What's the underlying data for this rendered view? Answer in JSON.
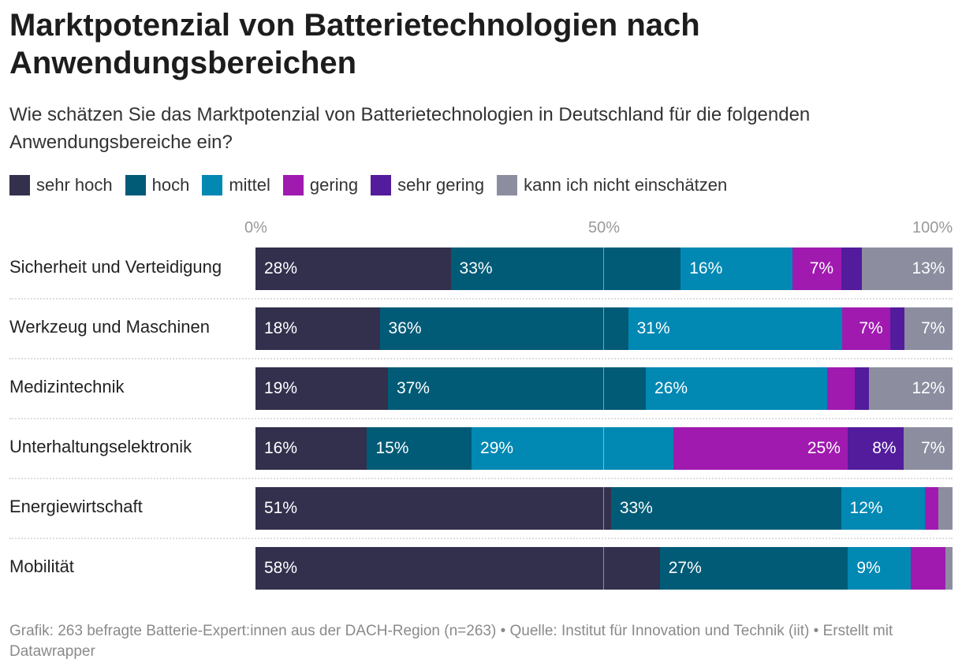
{
  "title": "Marktpotenzial von Batterietechnologien nach Anwendungsbereichen",
  "subtitle": "Wie schätzen Sie das Marktpotenzial von Batterietechnologien in Deutschland für die folgenden Anwendungsbereiche ein?",
  "footer": "Grafik: 263 befragte Batterie-Expert:innen aus der DACH-Region (n=263) • Quelle: Institut für Innovation und Technik (iit) • Erstellt mit Datawrapper",
  "chart_data": {
    "type": "bar",
    "orientation": "horizontal",
    "stacked": true,
    "xlim": [
      0,
      100
    ],
    "x_ticks": [
      "0%",
      "50%",
      "100%"
    ],
    "categories": [
      "Sicherheit und Verteidigung",
      "Werkzeug und Maschinen",
      "Medizintechnik",
      "Unterhaltungselektronik",
      "Energiewirtschaft",
      "Mobilität"
    ],
    "legend_position": "top",
    "series": [
      {
        "name": "sehr hoch",
        "color": "#32304d",
        "values": [
          28,
          18,
          19,
          16,
          51,
          58
        ]
      },
      {
        "name": "hoch",
        "color": "#015b76",
        "values": [
          33,
          36,
          37,
          15,
          33,
          27
        ]
      },
      {
        "name": "mittel",
        "color": "#0188b3",
        "values": [
          16,
          31,
          26,
          29,
          12,
          9
        ]
      },
      {
        "name": "gering",
        "color": "#a01ab0",
        "values": [
          7,
          7,
          4,
          25,
          2,
          5
        ]
      },
      {
        "name": "sehr gering",
        "color": "#521c9c",
        "values": [
          3,
          2,
          2,
          8,
          0,
          0
        ]
      },
      {
        "name": "kann ich nicht einschätzen",
        "color": "#8c8ea0",
        "values": [
          13,
          7,
          12,
          7,
          2,
          1
        ]
      }
    ]
  }
}
